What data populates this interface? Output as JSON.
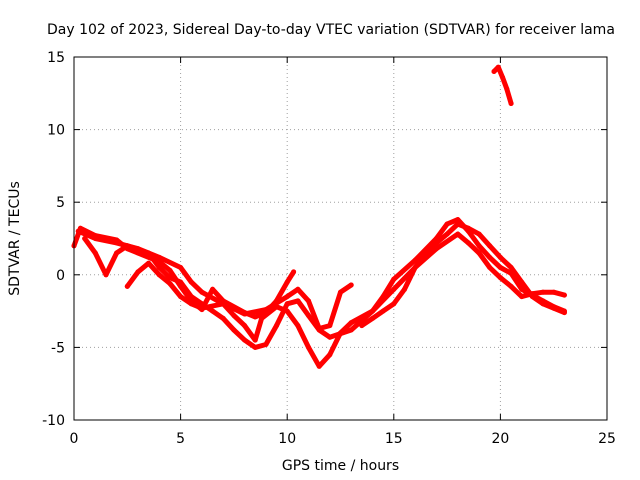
{
  "chart_data": {
    "type": "scatter",
    "title": "Day 102 of 2023, Sidereal Day-to-day VTEC variation (SDTVAR) for receiver lama",
    "xlabel": "GPS time / hours",
    "ylabel": "SDTVAR / TECUs",
    "xlim": [
      0,
      25
    ],
    "ylim": [
      -10,
      15
    ],
    "x_ticks": [
      0,
      5,
      10,
      15,
      20,
      25
    ],
    "y_ticks": [
      -10,
      -5,
      0,
      5,
      10,
      15
    ],
    "x_tick_labels": [
      "0",
      "5",
      "10",
      "15",
      "20",
      "25"
    ],
    "y_tick_labels": [
      "-10",
      "-5",
      "0",
      "5",
      "10",
      "15"
    ],
    "grid": true,
    "legend": "none",
    "series": [
      {
        "name": "track-a",
        "color": "#ff0000",
        "points": [
          [
            0,
            2.0
          ],
          [
            0.3,
            3.2
          ],
          [
            1.0,
            2.7
          ],
          [
            2.0,
            2.4
          ],
          [
            2.5,
            1.8
          ],
          [
            3.0,
            1.5
          ],
          [
            4.0,
            0.9
          ],
          [
            4.5,
            0.3
          ],
          [
            5.0,
            -0.8
          ],
          [
            5.5,
            -1.8
          ],
          [
            6.0,
            -2.4
          ],
          [
            6.5,
            -1.0
          ],
          [
            7.0,
            -1.8
          ],
          [
            8.0,
            -2.6
          ],
          [
            8.5,
            -2.9
          ],
          [
            9.0,
            -2.6
          ],
          [
            9.5,
            -1.8
          ],
          [
            10.0,
            -0.5
          ],
          [
            10.3,
            0.2
          ]
        ]
      },
      {
        "name": "track-b",
        "color": "#ff0000",
        "points": [
          [
            0.2,
            3.0
          ],
          [
            1.0,
            2.5
          ],
          [
            2.0,
            2.2
          ],
          [
            3.0,
            1.8
          ],
          [
            4.0,
            1.2
          ],
          [
            5.0,
            0.5
          ],
          [
            5.5,
            -0.5
          ],
          [
            6.0,
            -1.2
          ],
          [
            7.0,
            -2.0
          ],
          [
            7.5,
            -2.8
          ],
          [
            8.0,
            -3.5
          ],
          [
            8.5,
            -4.5
          ],
          [
            8.8,
            -3.0
          ],
          [
            9.5,
            -2.2
          ],
          [
            10.0,
            -2.5
          ],
          [
            10.5,
            -3.5
          ],
          [
            11.0,
            -5.0
          ],
          [
            11.5,
            -6.3
          ],
          [
            12.0,
            -5.5
          ],
          [
            12.5,
            -4.0
          ],
          [
            13.0,
            -3.3
          ],
          [
            14.0,
            -2.5
          ],
          [
            14.5,
            -1.5
          ],
          [
            15.0,
            -0.3
          ],
          [
            16.0,
            1.0
          ],
          [
            17.0,
            2.5
          ],
          [
            17.5,
            3.5
          ],
          [
            18.0,
            3.8
          ],
          [
            18.5,
            3.0
          ],
          [
            19.0,
            2.0
          ],
          [
            19.5,
            1.2
          ],
          [
            20.0,
            0.5
          ],
          [
            20.5,
            0.1
          ],
          [
            21.0,
            -1.0
          ],
          [
            22.0,
            -1.8
          ],
          [
            22.5,
            -2.2
          ],
          [
            23.0,
            -2.5
          ]
        ]
      },
      {
        "name": "track-c",
        "color": "#ff0000",
        "points": [
          [
            0.5,
            2.5
          ],
          [
            1.0,
            1.5
          ],
          [
            1.5,
            0.0
          ],
          [
            2.0,
            1.5
          ],
          [
            2.5,
            2.0
          ],
          [
            3.5,
            1.5
          ],
          [
            4.0,
            0.5
          ],
          [
            4.5,
            -0.2
          ],
          [
            5.0,
            -0.5
          ],
          [
            5.5,
            -1.5
          ],
          [
            6.0,
            -2.0
          ],
          [
            6.5,
            -2.5
          ],
          [
            7.0,
            -3.0
          ],
          [
            7.5,
            -3.8
          ],
          [
            8.0,
            -4.5
          ],
          [
            8.5,
            -5.0
          ],
          [
            9.0,
            -4.8
          ],
          [
            9.5,
            -3.5
          ],
          [
            10.0,
            -2.0
          ],
          [
            10.5,
            -1.8
          ],
          [
            11.0,
            -2.8
          ],
          [
            11.5,
            -3.8
          ],
          [
            12.0,
            -4.3
          ],
          [
            13.0,
            -3.8
          ],
          [
            14.0,
            -2.5
          ],
          [
            15.0,
            -1.0
          ],
          [
            16.0,
            0.5
          ],
          [
            17.0,
            1.8
          ],
          [
            18.0,
            2.8
          ],
          [
            18.5,
            2.2
          ],
          [
            19.0,
            1.5
          ],
          [
            19.5,
            0.5
          ],
          [
            20.0,
            -0.2
          ],
          [
            20.5,
            -0.8
          ],
          [
            21.0,
            -1.5
          ],
          [
            21.5,
            -1.3
          ],
          [
            22.0,
            -1.2
          ],
          [
            22.5,
            -1.2
          ],
          [
            23.0,
            -1.4
          ]
        ]
      },
      {
        "name": "track-d",
        "color": "#ff0000",
        "points": [
          [
            2.5,
            -0.8
          ],
          [
            3.0,
            0.2
          ],
          [
            3.5,
            0.8
          ],
          [
            4.0,
            0.0
          ],
          [
            4.5,
            -0.6
          ],
          [
            5.0,
            -1.5
          ],
          [
            5.5,
            -2.0
          ],
          [
            6.0,
            -2.3
          ],
          [
            7.0,
            -2.0
          ],
          [
            8.0,
            -2.7
          ],
          [
            9.0,
            -2.4
          ],
          [
            10.0,
            -1.5
          ],
          [
            10.5,
            -1.0
          ],
          [
            11.0,
            -1.8
          ],
          [
            11.5,
            -3.7
          ],
          [
            12.0,
            -3.5
          ],
          [
            12.5,
            -1.2
          ],
          [
            13.0,
            -0.7
          ]
        ]
      },
      {
        "name": "track-e",
        "color": "#ff0000",
        "points": [
          [
            13.5,
            -3.5
          ],
          [
            14.0,
            -3.0
          ],
          [
            14.5,
            -2.5
          ],
          [
            15.0,
            -2.0
          ],
          [
            15.5,
            -1.0
          ],
          [
            16.0,
            0.5
          ],
          [
            16.5,
            1.5
          ],
          [
            17.0,
            2.2
          ],
          [
            17.5,
            2.8
          ],
          [
            18.0,
            3.5
          ],
          [
            18.5,
            3.2
          ],
          [
            19.0,
            2.8
          ],
          [
            19.5,
            2.0
          ],
          [
            20.0,
            1.2
          ],
          [
            20.5,
            0.5
          ],
          [
            21.0,
            -0.5
          ],
          [
            21.5,
            -1.5
          ],
          [
            22.0,
            -2.0
          ],
          [
            22.5,
            -2.3
          ],
          [
            23.0,
            -2.6
          ]
        ]
      },
      {
        "name": "track-f",
        "color": "#ff0000",
        "points": [
          [
            19.7,
            14.0
          ],
          [
            19.9,
            14.3
          ],
          [
            20.1,
            13.6
          ],
          [
            20.3,
            12.8
          ],
          [
            20.5,
            11.8
          ]
        ]
      }
    ]
  }
}
